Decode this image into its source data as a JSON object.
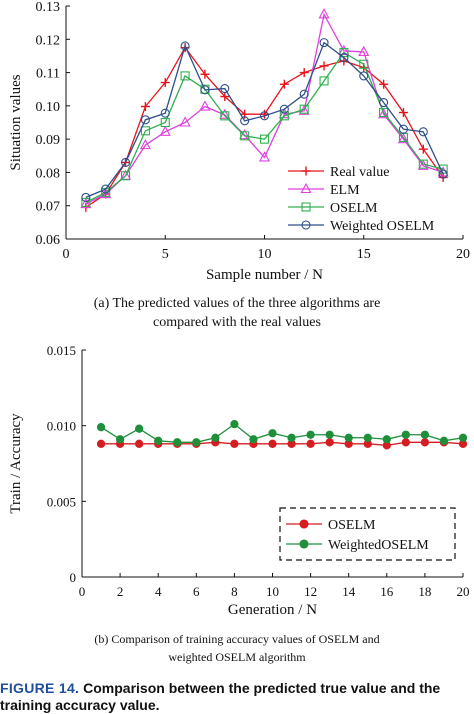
{
  "figure": {
    "label": "FIGURE 14.",
    "caption": "Comparison between the predicted true value and the training accuracy value."
  },
  "chart_data": [
    {
      "type": "line",
      "caption_line1": "(a) The predicted values of the three algorithms are",
      "caption_line2": "compared with the real values",
      "xlabel": "Sample number / N",
      "ylabel": "Situation values",
      "xlim": [
        0,
        20
      ],
      "ylim": [
        0.06,
        0.13
      ],
      "xticks": [
        0,
        5,
        10,
        15,
        20
      ],
      "yticks": [
        0.06,
        0.07,
        0.08,
        0.09,
        0.1,
        0.11,
        0.12,
        0.13
      ],
      "ytick_labels": [
        "0.06",
        "0.07",
        "0.08",
        "0.09",
        "0.10",
        "0.11",
        "0.12",
        "0.13"
      ],
      "legend_position": "bottom-right",
      "grid": false,
      "x": [
        1,
        2,
        3,
        4,
        5,
        6,
        7,
        8,
        9,
        10,
        11,
        12,
        13,
        14,
        15,
        16,
        17,
        18,
        19
      ],
      "series": [
        {
          "name": "Real value",
          "color": "#e8141c",
          "marker": "plus",
          "values": [
            0.0695,
            0.0735,
            0.083,
            0.0998,
            0.107,
            0.1175,
            0.1095,
            0.1028,
            0.0975,
            0.0975,
            0.1065,
            0.11,
            0.112,
            0.1135,
            0.1115,
            0.1065,
            0.098,
            0.087,
            0.0785
          ]
        },
        {
          "name": "ELM",
          "color": "#e040e0",
          "marker": "triangle",
          "values": [
            0.0705,
            0.0735,
            0.079,
            0.0882,
            0.0922,
            0.095,
            0.0998,
            0.0973,
            0.0912,
            0.0845,
            0.0975,
            0.0985,
            0.1275,
            0.1165,
            0.1162,
            0.0975,
            0.09,
            0.082,
            0.08
          ]
        },
        {
          "name": "OSELM",
          "color": "#30b050",
          "marker": "square",
          "values": [
            0.071,
            0.074,
            0.079,
            0.0925,
            0.095,
            0.109,
            0.105,
            0.097,
            0.091,
            0.09,
            0.097,
            0.099,
            0.1075,
            0.116,
            0.1125,
            0.098,
            0.0905,
            0.0825,
            0.081
          ]
        },
        {
          "name": "Weighted OSELM",
          "color": "#2e4f8a",
          "marker": "circle",
          "values": [
            0.0725,
            0.075,
            0.083,
            0.0958,
            0.0978,
            0.118,
            0.1048,
            0.1052,
            0.0955,
            0.097,
            0.099,
            0.1035,
            0.119,
            0.1145,
            0.109,
            0.101,
            0.093,
            0.0922,
            0.0795
          ]
        }
      ]
    },
    {
      "type": "line",
      "caption_line1": "(b) Comparison of training accuracy values of OSELM and",
      "caption_line2": "weighted OSELM algorithm",
      "xlabel": "Generation / N",
      "ylabel": "Train / Accuracy",
      "xlim": [
        0,
        20
      ],
      "ylim": [
        0,
        0.015
      ],
      "xticks": [
        0,
        2,
        4,
        6,
        8,
        10,
        12,
        14,
        16,
        18,
        20
      ],
      "yticks": [
        0,
        0.005,
        0.01,
        0.015
      ],
      "ytick_labels": [
        "0",
        "0.005",
        "0.010",
        "0.015"
      ],
      "legend_position": "bottom-right (dashed box)",
      "grid": false,
      "x": [
        1,
        2,
        3,
        4,
        5,
        6,
        7,
        8,
        9,
        10,
        11,
        12,
        13,
        14,
        15,
        16,
        17,
        18,
        19,
        20
      ],
      "series": [
        {
          "name": "OSELM",
          "color": "#d41e22",
          "marker": "circle",
          "values": [
            0.0088,
            0.0088,
            0.0088,
            0.0088,
            0.0088,
            0.0088,
            0.0089,
            0.0088,
            0.0088,
            0.0088,
            0.0088,
            0.0088,
            0.0089,
            0.0088,
            0.0088,
            0.0087,
            0.0089,
            0.0089,
            0.0089,
            0.0088
          ]
        },
        {
          "name": "WeightedOSELM",
          "color": "#1f8f3a",
          "marker": "circle",
          "values": [
            0.0099,
            0.0091,
            0.0098,
            0.009,
            0.0089,
            0.0089,
            0.0092,
            0.0101,
            0.0091,
            0.0095,
            0.0092,
            0.0094,
            0.0094,
            0.0092,
            0.0092,
            0.0091,
            0.0094,
            0.0094,
            0.009,
            0.0092
          ]
        }
      ]
    }
  ]
}
